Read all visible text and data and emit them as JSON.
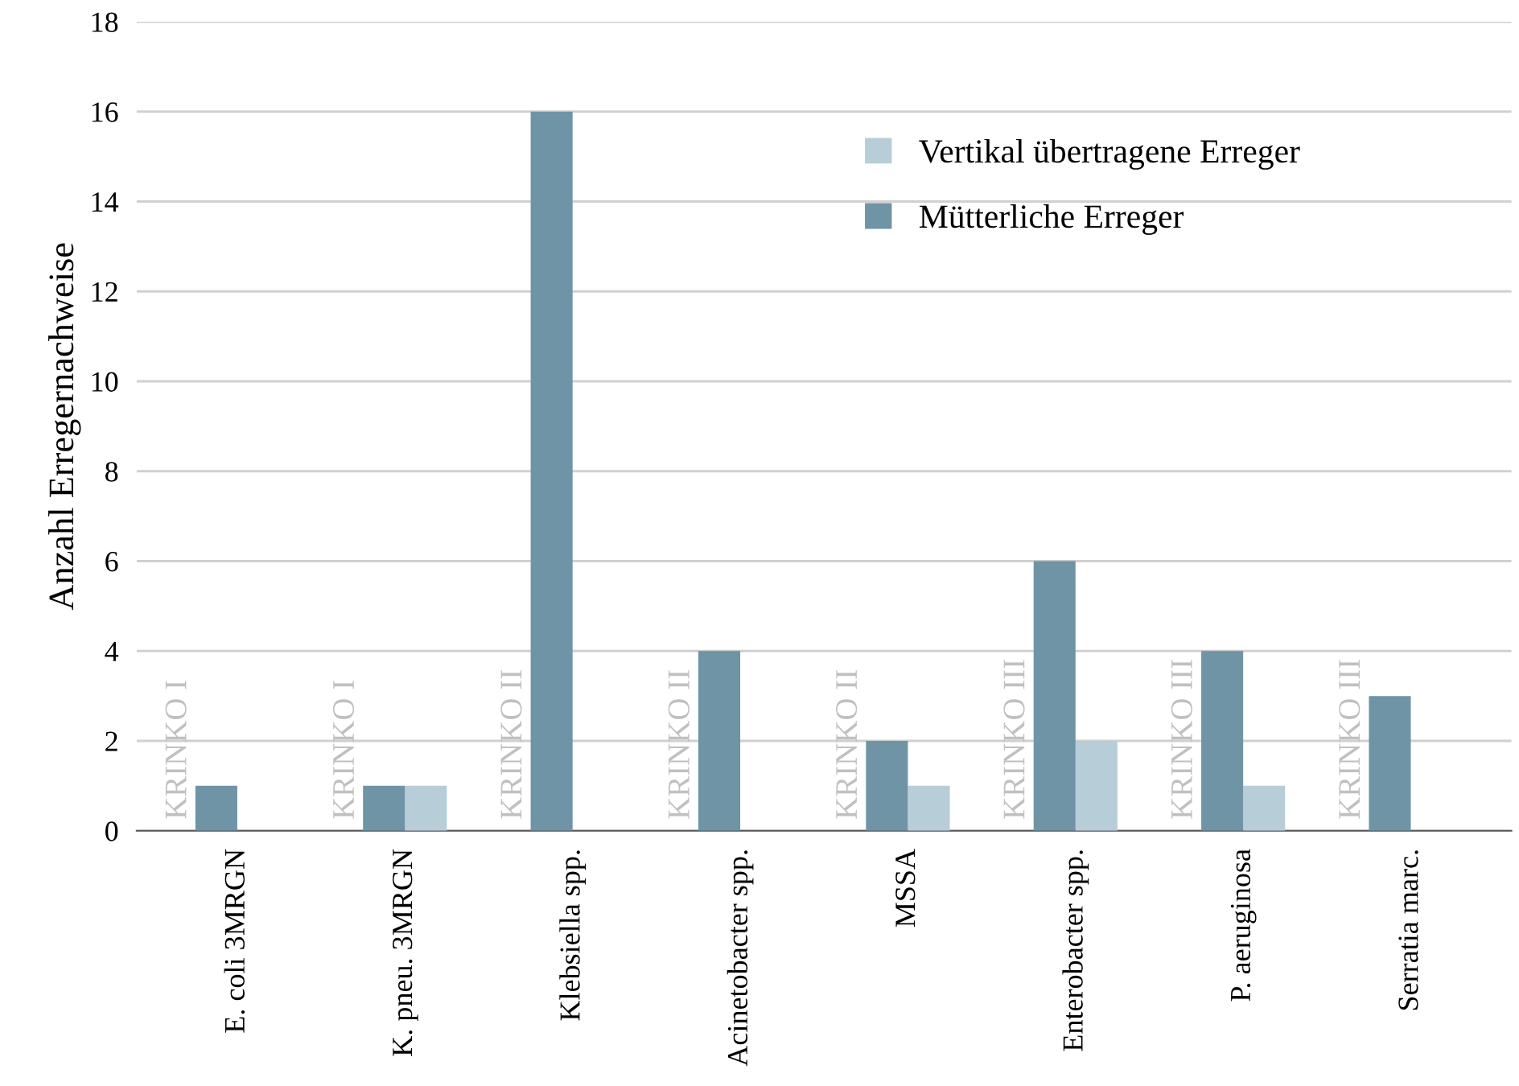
{
  "chart_data": {
    "type": "bar",
    "ylabel": "Anzahl Erregernachweise",
    "categories": [
      "E. coli 3MRGN",
      "K. pneu. 3MRGN",
      "Klebsiella spp.",
      "Acinetobacter spp.",
      "MSSA",
      "Enterobacter spp.",
      "P. aeruginosa",
      "Serratia marc."
    ],
    "series": [
      {
        "name": "Vertikal übertragene Erreger",
        "color": "#b7cdd8",
        "values": [
          0,
          1,
          0,
          0,
          1,
          2,
          1,
          0
        ]
      },
      {
        "name": "Mütterliche Erreger",
        "color": "#6f94a6",
        "values": [
          1,
          1,
          16,
          4,
          2,
          6,
          4,
          3
        ]
      }
    ],
    "annotations": [
      {
        "text": "KRINKO I",
        "x": "E. coli 3MRGN",
        "y": 0
      },
      {
        "text": "KRINKO I",
        "x": "K. pneu. 3MRGN",
        "y": 0
      },
      {
        "text": "KRINKO II",
        "x": "Klebsiella spp.",
        "y": 0
      },
      {
        "text": "KRINKO II",
        "x": "Acinetobacter spp.",
        "y": 0
      },
      {
        "text": "KRINKO II",
        "x": "MSSA",
        "y": 0
      },
      {
        "text": "KRINKO III",
        "x": "Enterobacter spp.",
        "y": 0
      },
      {
        "text": "KRINKO III",
        "x": "P. aeruginosa",
        "y": 0
      },
      {
        "text": "KRINKO III",
        "x": "Serratia marc.",
        "y": 0
      }
    ],
    "ylim": [
      0,
      18
    ],
    "yticks": [
      0,
      2,
      4,
      6,
      8,
      10,
      12,
      14,
      16,
      18
    ],
    "grid": "y",
    "legend": "top right"
  }
}
